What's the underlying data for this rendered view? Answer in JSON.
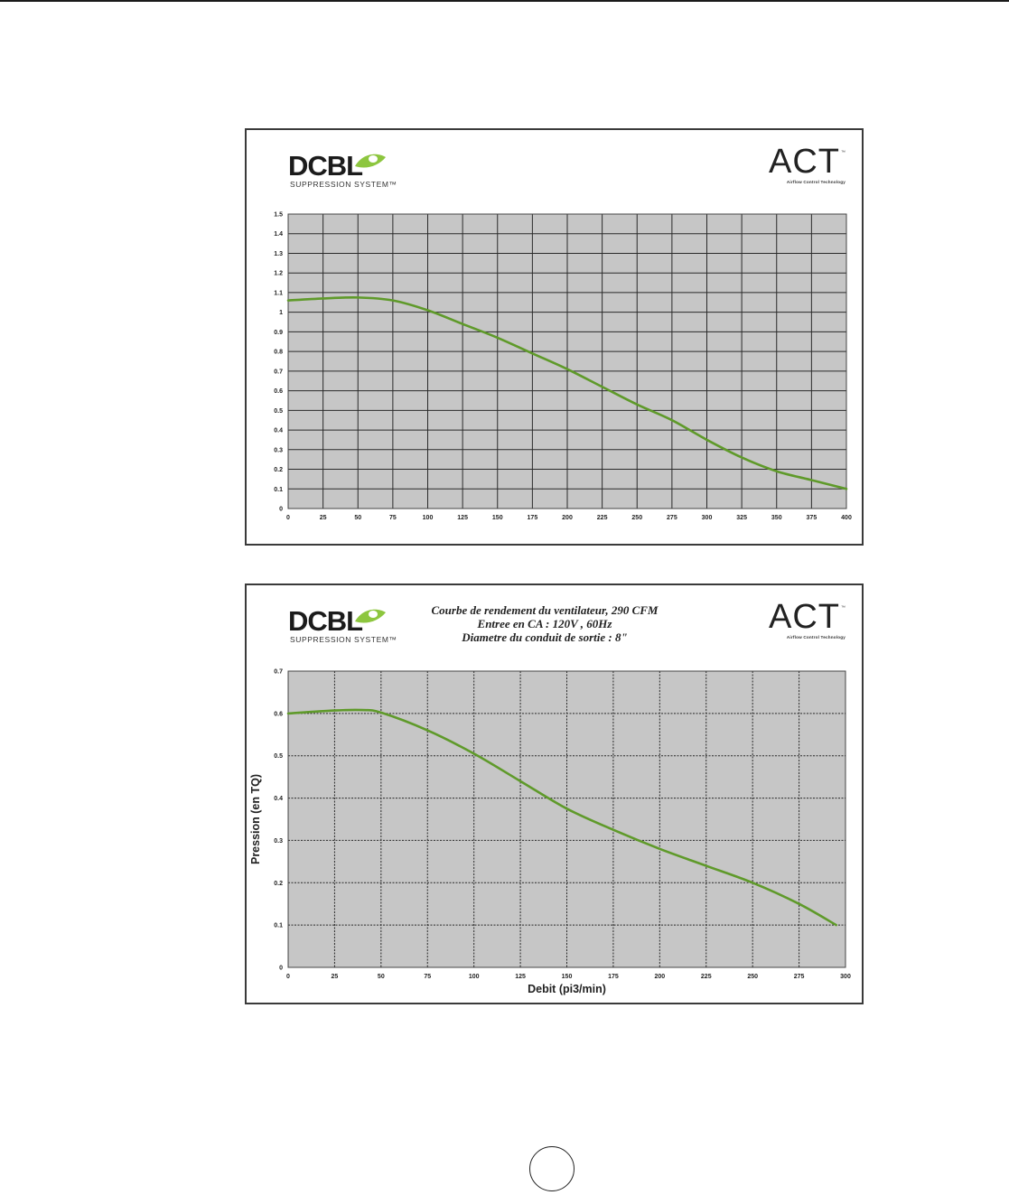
{
  "brand": {
    "dcbl": "DCBL",
    "dcbl_sub": "SUPPRESSION SYSTEM™",
    "act": "ACT",
    "act_tm": "™",
    "act_sub": "Airflow Control Technology"
  },
  "colors": {
    "plot_bg": "#c6c6c6",
    "grid": "#2a2a2a",
    "curve": "#5f9a2a",
    "leaf": "#8dc63f"
  },
  "page_number_circle": "",
  "chart_data": [
    {
      "type": "line",
      "title": "",
      "xlabel": "",
      "ylabel": "",
      "xlim": [
        0,
        400
      ],
      "ylim": [
        0,
        1.5
      ],
      "x_ticks": [
        "0",
        "25",
        "50",
        "75",
        "100",
        "125",
        "150",
        "175",
        "200",
        "225",
        "250",
        "275",
        "300",
        "325",
        "350",
        "375",
        "400"
      ],
      "y_ticks": [
        "0",
        "0.1",
        "0.2",
        "0.3",
        "0.4",
        "0.5",
        "0.6",
        "0.7",
        "0.8",
        "0.9",
        "1",
        "1.1",
        "1.2",
        "1.3",
        "1.4",
        "1.5"
      ],
      "grid": true,
      "series": [
        {
          "x": [
            0,
            25,
            50,
            75,
            100,
            125,
            150,
            175,
            200,
            225,
            250,
            275,
            300,
            325,
            350,
            375,
            400
          ],
          "y": [
            1.06,
            1.07,
            1.075,
            1.06,
            1.01,
            0.94,
            0.87,
            0.79,
            0.71,
            0.62,
            0.53,
            0.45,
            0.35,
            0.26,
            0.19,
            0.145,
            0.1
          ]
        }
      ]
    },
    {
      "type": "line",
      "title_lines": [
        "Courbe de rendement du ventilateur, 290 CFM",
        "Entree en CA : 120V , 60Hz",
        "Diametre du conduit de sortie : 8\""
      ],
      "xlabel": "Debit (pi3/min)",
      "ylabel": "Pression (en TQ)",
      "xlim": [
        0,
        300
      ],
      "ylim": [
        0,
        0.7
      ],
      "x_ticks": [
        "0",
        "25",
        "50",
        "75",
        "100",
        "125",
        "150",
        "175",
        "200",
        "225",
        "250",
        "275",
        "300"
      ],
      "y_ticks": [
        "0",
        "0.1",
        "0.2",
        "0.3",
        "0.4",
        "0.5",
        "0.6",
        "0.7"
      ],
      "grid": true,
      "series": [
        {
          "x": [
            0,
            25,
            40,
            50,
            75,
            100,
            125,
            150,
            175,
            200,
            225,
            250,
            275,
            295
          ],
          "y": [
            0.6,
            0.607,
            0.608,
            0.602,
            0.56,
            0.505,
            0.44,
            0.375,
            0.325,
            0.28,
            0.24,
            0.2,
            0.15,
            0.1
          ]
        }
      ]
    }
  ]
}
